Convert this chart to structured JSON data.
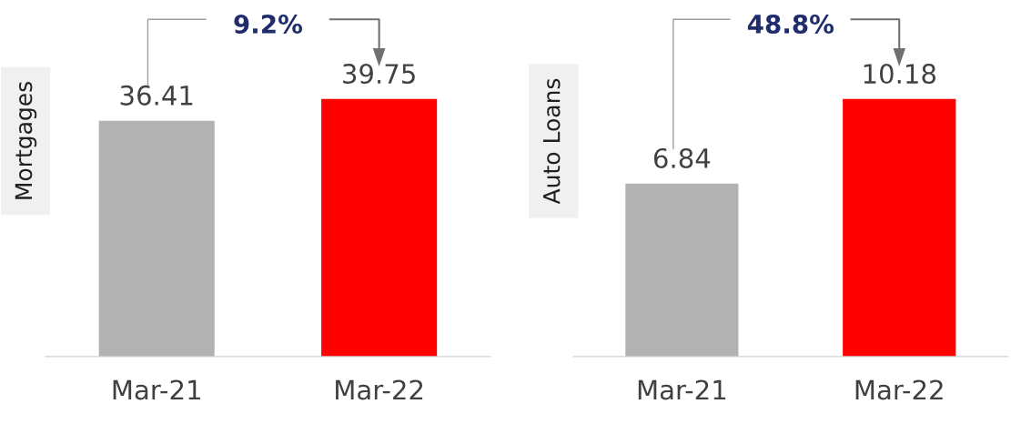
{
  "chart_data": [
    {
      "type": "bar",
      "ylabel": "Mortgages",
      "categories": [
        "Mar-21",
        "Mar-22"
      ],
      "values": [
        36.41,
        39.75
      ],
      "colors": [
        "#b2b2b2",
        "#ff0000"
      ],
      "data_labels": true,
      "grid": false,
      "tick_labels": "x",
      "annotations": [
        "9.2%"
      ]
    },
    {
      "type": "bar",
      "ylabel": "Auto Loans",
      "categories": [
        "Mar-21",
        "Mar-22"
      ],
      "values": [
        6.84,
        10.18
      ],
      "colors": [
        "#b2b2b2",
        "#ff0000"
      ],
      "data_labels": true,
      "grid": false,
      "tick_labels": "x",
      "annotations": [
        "48.8%"
      ]
    }
  ]
}
